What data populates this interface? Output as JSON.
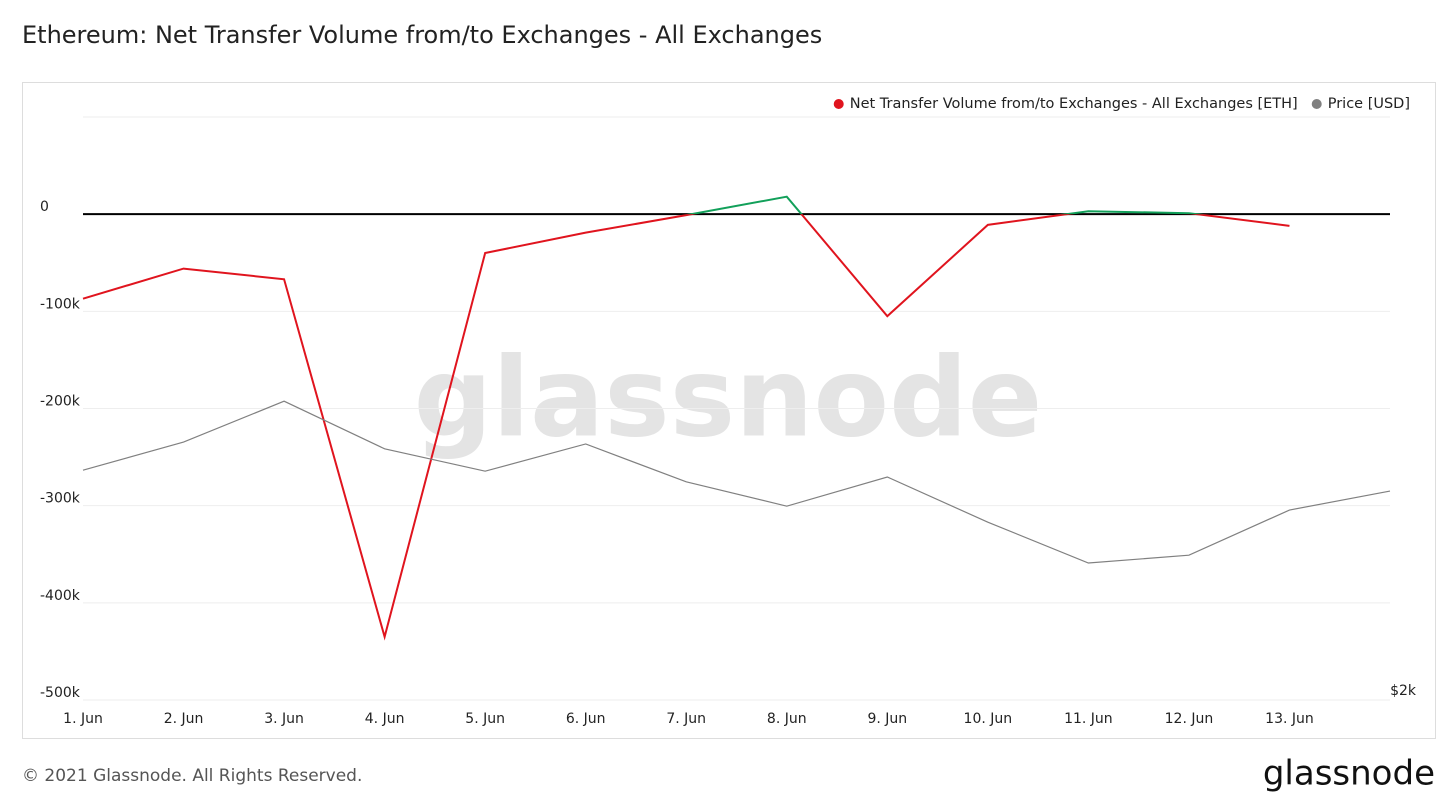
{
  "chart_data": {
    "type": "line",
    "title": "Ethereum: Net Transfer Volume from/to Exchanges - All Exchanges",
    "watermark": "glassnode",
    "categories": [
      "1. Jun",
      "2. Jun",
      "3. Jun",
      "4. Jun",
      "5. Jun",
      "6. Jun",
      "7. Jun",
      "8. Jun",
      "9. Jun",
      "10. Jun",
      "11. Jun",
      "12. Jun",
      "13. Jun",
      null
    ],
    "series": [
      {
        "name": "Net Transfer Volume from/to Exchanges - All Exchanges [ETH]",
        "color": "#e0141e",
        "positive_color": "#12a05a",
        "values": [
          -87000,
          -56000,
          -67000,
          -435000,
          -40000,
          -19000,
          -1000,
          18000,
          -105000,
          -11000,
          3000,
          1000,
          -12000,
          null
        ]
      },
      {
        "name": "Price [USD]",
        "color": "#808080",
        "axis": "y2",
        "values": [
          2473,
          2531,
          2615,
          2517,
          2471,
          2527,
          2449,
          2399,
          2459,
          2366,
          2282,
          2298,
          2391,
          2430
        ]
      }
    ],
    "ylim": [
      -500000,
      100000
    ],
    "yticks": [
      {
        "value": 0,
        "label": "0"
      },
      {
        "value": -100000,
        "label": "-100k"
      },
      {
        "value": -200000,
        "label": "-200k"
      },
      {
        "value": -300000,
        "label": "-300k"
      },
      {
        "value": -400000,
        "label": "-400k"
      },
      {
        "value": -500000,
        "label": "-500k"
      }
    ],
    "y2lim": [
      2000,
      3200
    ],
    "y2ticks": [
      {
        "value": 2000,
        "label": "$2k"
      }
    ],
    "grid": true,
    "legend": "top-right"
  },
  "footer": {
    "copyright": "© 2021 Glassnode. All Rights Reserved.",
    "logo": "glassnode"
  }
}
